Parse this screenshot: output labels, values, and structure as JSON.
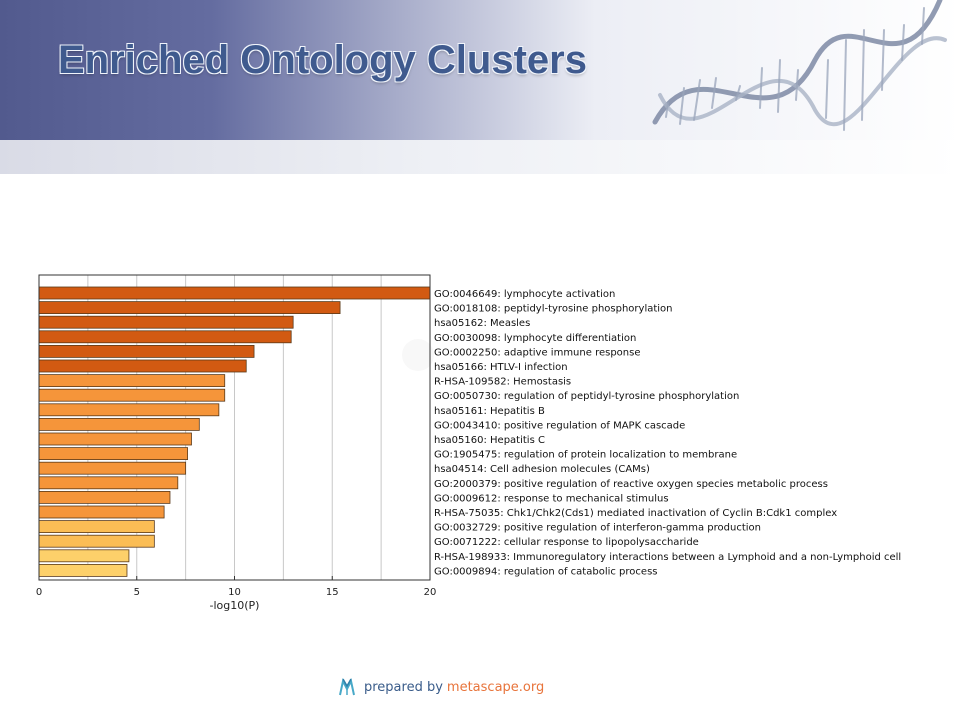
{
  "slide": {
    "title": "Enriched Ontology Clusters",
    "footer_prefix": "prepared by",
    "footer_link": "metascape.org",
    "colors": {
      "banner": "#5a6296",
      "title": "#3f5a8e",
      "footer_link": "#e8743b"
    }
  },
  "chart_data": {
    "type": "bar",
    "orientation": "horizontal",
    "xlabel": "-log10(P)",
    "xlim": [
      0,
      20
    ],
    "xticks": [
      0,
      5,
      10,
      15,
      20
    ],
    "grid": "vertical",
    "categories": [
      "GO:0046649: lymphocyte activation",
      "GO:0018108: peptidyl-tyrosine phosphorylation",
      "hsa05162: Measles",
      "GO:0030098: lymphocyte differentiation",
      "GO:0002250: adaptive immune response",
      "hsa05166: HTLV-I infection",
      "R-HSA-109582: Hemostasis",
      "GO:0050730: regulation of peptidyl-tyrosine phosphorylation",
      "hsa05161: Hepatitis B",
      "GO:0043410: positive regulation of MAPK cascade",
      "hsa05160: Hepatitis C",
      "GO:1905475: regulation of protein localization to membrane",
      "hsa04514: Cell adhesion molecules (CAMs)",
      "GO:2000379: positive regulation of reactive oxygen species metabolic process",
      "GO:0009612: response to mechanical stimulus",
      "R-HSA-75035: Chk1/Chk2(Cds1) mediated inactivation of Cyclin B:Cdk1 complex",
      "GO:0032729: positive regulation of interferon-gamma production",
      "GO:0071222: cellular response to lipopolysaccharide",
      "R-HSA-198933: Immunoregulatory interactions between a Lymphoid and a non-Lymphoid cell",
      "GO:0009894: regulation of catabolic process"
    ],
    "values": [
      20.0,
      15.4,
      13.0,
      12.9,
      11.0,
      10.6,
      9.5,
      9.5,
      9.2,
      8.2,
      7.8,
      7.6,
      7.5,
      7.1,
      6.7,
      6.4,
      5.9,
      5.9,
      4.6,
      4.5
    ],
    "colors": [
      "#d25a12",
      "#d25a12",
      "#d25a12",
      "#d25a12",
      "#d25a12",
      "#d25a12",
      "#f5953a",
      "#f5953a",
      "#f5953a",
      "#f5953a",
      "#f5953a",
      "#f5953a",
      "#f5953a",
      "#f5953a",
      "#f5953a",
      "#f5953a",
      "#fbbd55",
      "#fbbd55",
      "#fdd06a",
      "#fdd06a"
    ]
  }
}
